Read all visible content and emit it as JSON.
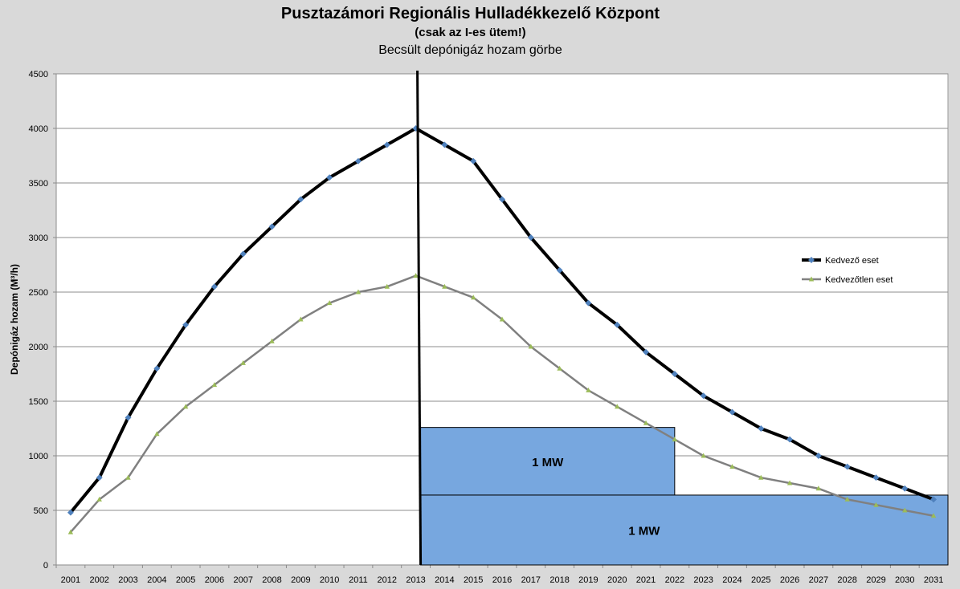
{
  "chart_data": {
    "type": "line",
    "title": "Pusztazámori Regionális Hulladékkezelő Központ",
    "subtitle": "(csak az I-es ütem!)",
    "subtitle2": "Becsült depónigáz hozam görbe",
    "ylabel": "Depónigáz hozam (M³/h)",
    "xlabel": "",
    "ylim": [
      0,
      4500
    ],
    "yticks": [
      0,
      500,
      1000,
      1500,
      2000,
      2500,
      3000,
      3500,
      4000,
      4500
    ],
    "grid": true,
    "legend_position": "right",
    "categories": [
      "2001",
      "2002",
      "2003",
      "2004",
      "2005",
      "2006",
      "2007",
      "2008",
      "2009",
      "2010",
      "2011",
      "2012",
      "2013",
      "2014",
      "2015",
      "2016",
      "2017",
      "2018",
      "2019",
      "2020",
      "2021",
      "2022",
      "2023",
      "2024",
      "2025",
      "2026",
      "2027",
      "2028",
      "2029",
      "2030",
      "2031"
    ],
    "series": [
      {
        "name": "Kedvező eset",
        "color": "#000000",
        "marker_color": "#4f81bd",
        "values": [
          480,
          800,
          1350,
          1800,
          2200,
          2550,
          2850,
          3100,
          3350,
          3550,
          3700,
          3850,
          4000,
          3850,
          3700,
          3350,
          3000,
          2700,
          2400,
          2200,
          1950,
          1750,
          1550,
          1400,
          1250,
          1150,
          1000,
          900,
          800,
          700,
          600
        ]
      },
      {
        "name": "Kedvezőtlen eset",
        "color": "#808080",
        "marker_color": "#9bbb59",
        "values": [
          300,
          600,
          800,
          1200,
          1450,
          1650,
          1850,
          2050,
          2250,
          2400,
          2500,
          2550,
          2650,
          2550,
          2450,
          2250,
          2000,
          1800,
          1600,
          1450,
          1300,
          1150,
          1000,
          900,
          800,
          750,
          700,
          600,
          550,
          500,
          450
        ]
      }
    ],
    "vertical_line_at": "2013",
    "annotations": [
      {
        "label": "1 MW",
        "x_start": "2013",
        "x_end": "2022",
        "y_bottom": 640,
        "y_top": 1260,
        "fill": "#77a7df"
      },
      {
        "label": "1 MW",
        "x_start": "2013",
        "x_end": "2031",
        "y_bottom": 0,
        "y_top": 640,
        "fill": "#77a7df"
      }
    ]
  }
}
